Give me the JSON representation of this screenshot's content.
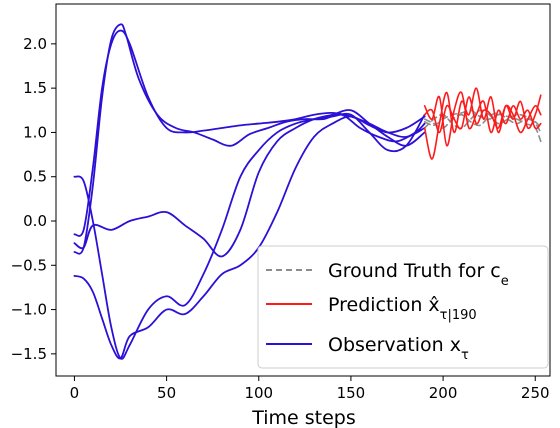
{
  "chart_data": {
    "type": "line",
    "title": "",
    "xlabel": "Time steps",
    "ylabel": "",
    "xlim": [
      -10,
      258
    ],
    "ylim": [
      -1.75,
      2.45
    ],
    "xticks": [
      0,
      50,
      100,
      150,
      200,
      250
    ],
    "yticks": [
      -1.5,
      -1.0,
      -0.5,
      0.0,
      0.5,
      1.0,
      1.5,
      2.0
    ],
    "ytick_labels": [
      "−1.5",
      "−1.0",
      "−0.5",
      "0.0",
      "0.5",
      "1.0",
      "1.5",
      "2.0"
    ],
    "grid": false,
    "legend_position": "lower-right",
    "legend": [
      {
        "label": "Ground Truth for c",
        "sub": "e",
        "color": "#8c8c8c",
        "style": "dashed"
      },
      {
        "label": "Prediction x̂",
        "sub": "τ|190",
        "color": "#ff1a1a",
        "style": "solid"
      },
      {
        "label": "Observation x",
        "sub": "τ",
        "color": "#2b10d6",
        "style": "solid"
      }
    ],
    "series": [
      {
        "role": "observation",
        "color": "#2b10d6",
        "x": [
          0,
          5,
          10,
          15,
          20,
          25,
          30,
          40,
          50,
          60,
          70,
          80,
          90,
          100,
          110,
          120,
          130,
          140,
          150,
          160,
          170,
          180,
          190
        ],
        "y": [
          -0.15,
          -0.1,
          0.6,
          1.5,
          2.0,
          2.15,
          2.0,
          1.4,
          1.05,
          1.0,
          1.02,
          1.05,
          1.08,
          1.1,
          1.12,
          1.15,
          1.2,
          1.22,
          1.18,
          1.1,
          1.0,
          0.95,
          1.05
        ]
      },
      {
        "role": "observation",
        "color": "#2b10d6",
        "x": [
          0,
          5,
          10,
          15,
          20,
          25,
          28,
          35,
          45,
          55,
          65,
          75,
          85,
          95,
          105,
          115,
          125,
          135,
          145,
          155,
          165,
          175,
          185,
          190
        ],
        "y": [
          -0.35,
          -0.3,
          0.4,
          1.4,
          2.05,
          2.22,
          2.1,
          1.6,
          1.2,
          1.05,
          1.0,
          0.92,
          0.85,
          0.98,
          1.05,
          1.12,
          1.15,
          1.15,
          1.2,
          1.05,
          0.95,
          0.9,
          1.0,
          1.1
        ]
      },
      {
        "role": "observation",
        "color": "#2b10d6",
        "x": [
          0,
          5,
          10,
          15,
          20,
          25,
          30,
          40,
          50,
          60,
          70,
          80,
          90,
          100,
          110,
          120,
          130,
          140,
          150,
          160,
          170,
          180,
          190
        ],
        "y": [
          0.5,
          0.45,
          0.0,
          -0.6,
          -1.2,
          -1.55,
          -1.4,
          -1.0,
          -0.85,
          -0.95,
          -0.6,
          -0.1,
          0.5,
          0.8,
          1.0,
          1.1,
          1.15,
          1.18,
          1.2,
          1.0,
          0.8,
          0.85,
          1.2
        ]
      },
      {
        "role": "observation",
        "color": "#2b10d6",
        "x": [
          0,
          5,
          10,
          20,
          30,
          40,
          50,
          60,
          70,
          80,
          90,
          100,
          110,
          120,
          130,
          140,
          150,
          160,
          170,
          180,
          190
        ],
        "y": [
          -0.25,
          -0.3,
          -0.05,
          -0.1,
          0.0,
          0.05,
          0.1,
          -0.05,
          -0.2,
          -0.4,
          -0.1,
          0.55,
          0.9,
          1.05,
          1.15,
          1.2,
          1.25,
          1.1,
          0.95,
          0.85,
          1.0
        ]
      },
      {
        "role": "observation",
        "color": "#2b10d6",
        "x": [
          0,
          5,
          10,
          15,
          20,
          25,
          30,
          40,
          50,
          60,
          70,
          80,
          90,
          100,
          110,
          120,
          130,
          140,
          150,
          160,
          170,
          180,
          190
        ],
        "y": [
          -0.62,
          -0.65,
          -0.8,
          -1.1,
          -1.4,
          -1.55,
          -1.3,
          -1.2,
          -1.0,
          -1.05,
          -0.85,
          -0.6,
          -0.5,
          -0.3,
          0.1,
          0.6,
          0.95,
          1.1,
          1.18,
          1.08,
          1.0,
          1.05,
          1.18
        ]
      },
      {
        "role": "ground_truth",
        "color": "#8c8c8c",
        "x": [
          190,
          195,
          200,
          205,
          210,
          215,
          220,
          225,
          230,
          235,
          240,
          245,
          250,
          253
        ],
        "y": [
          1.12,
          1.08,
          1.15,
          1.2,
          1.22,
          1.25,
          1.18,
          1.15,
          1.2,
          1.18,
          1.15,
          1.1,
          1.05,
          0.9
        ]
      },
      {
        "role": "ground_truth",
        "color": "#8c8c8c",
        "x": [
          190,
          195,
          200,
          205,
          210,
          215,
          220,
          225,
          230,
          235,
          240,
          245,
          250,
          253
        ],
        "y": [
          1.05,
          1.15,
          1.2,
          1.1,
          1.05,
          1.15,
          1.25,
          1.2,
          1.1,
          1.15,
          1.2,
          1.18,
          1.1,
          1.0
        ]
      },
      {
        "role": "ground_truth",
        "color": "#8c8c8c",
        "x": [
          190,
          195,
          200,
          205,
          210,
          215,
          220,
          225,
          230,
          235,
          240,
          245,
          250,
          253
        ],
        "y": [
          1.15,
          1.1,
          1.05,
          1.15,
          1.2,
          1.12,
          1.08,
          1.18,
          1.22,
          1.15,
          1.1,
          1.15,
          1.12,
          1.05
        ]
      },
      {
        "role": "prediction",
        "color": "#ff1a1a",
        "x": [
          190,
          194,
          198,
          202,
          206,
          210,
          214,
          218,
          222,
          226,
          230,
          234,
          238,
          242,
          246,
          250,
          253
        ],
        "y": [
          1.05,
          0.7,
          1.1,
          1.45,
          1.0,
          1.35,
          1.2,
          1.5,
          1.15,
          1.4,
          1.0,
          1.3,
          1.15,
          1.35,
          1.05,
          1.2,
          1.42
        ]
      },
      {
        "role": "prediction",
        "color": "#ff1a1a",
        "x": [
          190,
          194,
          198,
          202,
          206,
          210,
          214,
          218,
          222,
          226,
          230,
          234,
          238,
          242,
          246,
          250,
          253
        ],
        "y": [
          1.3,
          1.15,
          1.4,
          0.85,
          1.25,
          1.45,
          1.05,
          1.2,
          1.35,
          1.0,
          1.25,
          1.1,
          1.3,
          1.15,
          1.25,
          1.05,
          1.1
        ]
      },
      {
        "role": "prediction",
        "color": "#ff1a1a",
        "x": [
          190,
          194,
          198,
          202,
          206,
          210,
          214,
          218,
          222,
          226,
          230,
          234,
          238,
          242,
          246,
          250,
          253
        ],
        "y": [
          1.2,
          1.25,
          1.0,
          1.3,
          1.15,
          1.05,
          1.4,
          1.1,
          1.25,
          1.2,
          1.05,
          1.3,
          1.2,
          1.0,
          1.15,
          1.3,
          1.2
        ]
      }
    ]
  }
}
